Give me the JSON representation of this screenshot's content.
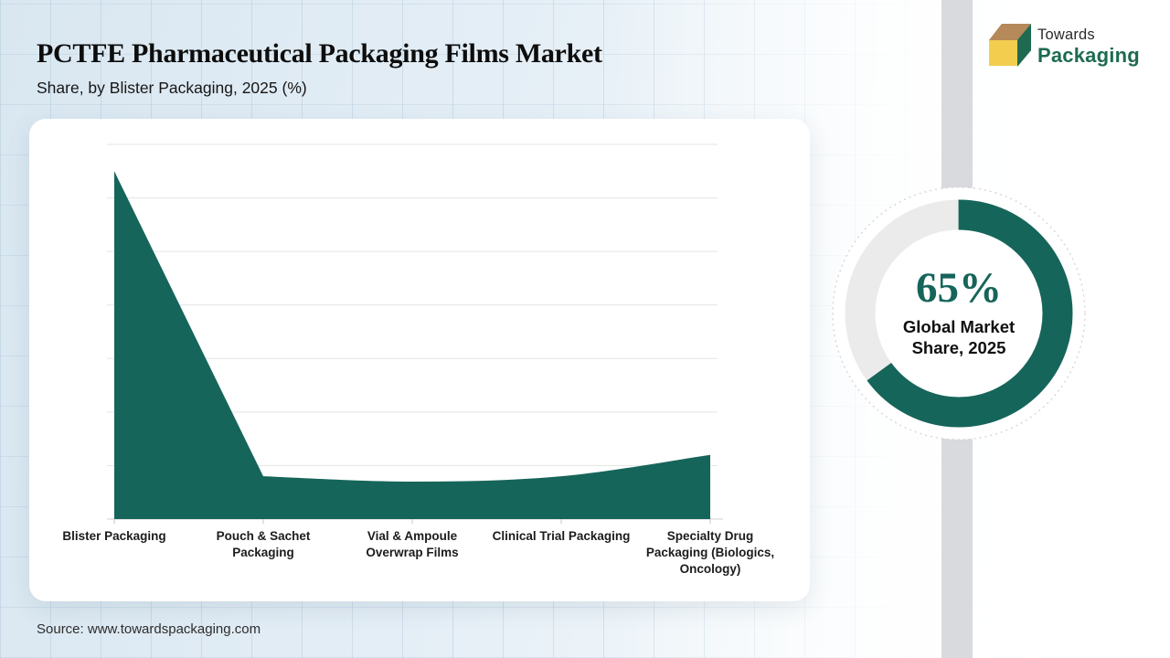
{
  "page": {
    "title": "PCTFE Pharmaceutical Packaging Films Market",
    "subtitle": "Share, by Blister Packaging, 2025 (%)"
  },
  "logo": {
    "name_top": "Towards",
    "name_bottom": "Packaging"
  },
  "footer": {
    "source": "Source: www.towardspackaging.com"
  },
  "colors": {
    "accent_green": "#16655a",
    "donut_track": "#ebebeb",
    "side_band": "#d9dadd",
    "chart_gridline": "#e4e4e6",
    "chart_axis": "#d2d2d5",
    "background_blue": "#d9e7f1"
  },
  "chart_data": [
    {
      "type": "area",
      "title": "Share, by Blister Packaging, 2025 (%)",
      "categories": [
        "Blister Packaging",
        "Pouch & Sachet Packaging",
        "Vial & Ampoule Overwrap Films",
        "Clinical Trial Packaging",
        "Specialty Drug Packaging (Biologics, Oncology)"
      ],
      "values": [
        65,
        8,
        7,
        8,
        12
      ],
      "unit": "%",
      "ylim": [
        0,
        70
      ],
      "gridline_step": 10,
      "grid": "horizontal-only",
      "y_tick_labels_visible": false,
      "legend": "none",
      "fill_color": "#16655a"
    },
    {
      "type": "donut",
      "value": 65,
      "center_value_label": "65%",
      "center_caption": "Global Market Share, 2025",
      "segments": [
        {
          "value": 65,
          "color": "#16655a"
        },
        {
          "value": 35,
          "color": "#ebebeb"
        }
      ],
      "start_angle_deg": 0,
      "direction": "clockwise"
    }
  ]
}
